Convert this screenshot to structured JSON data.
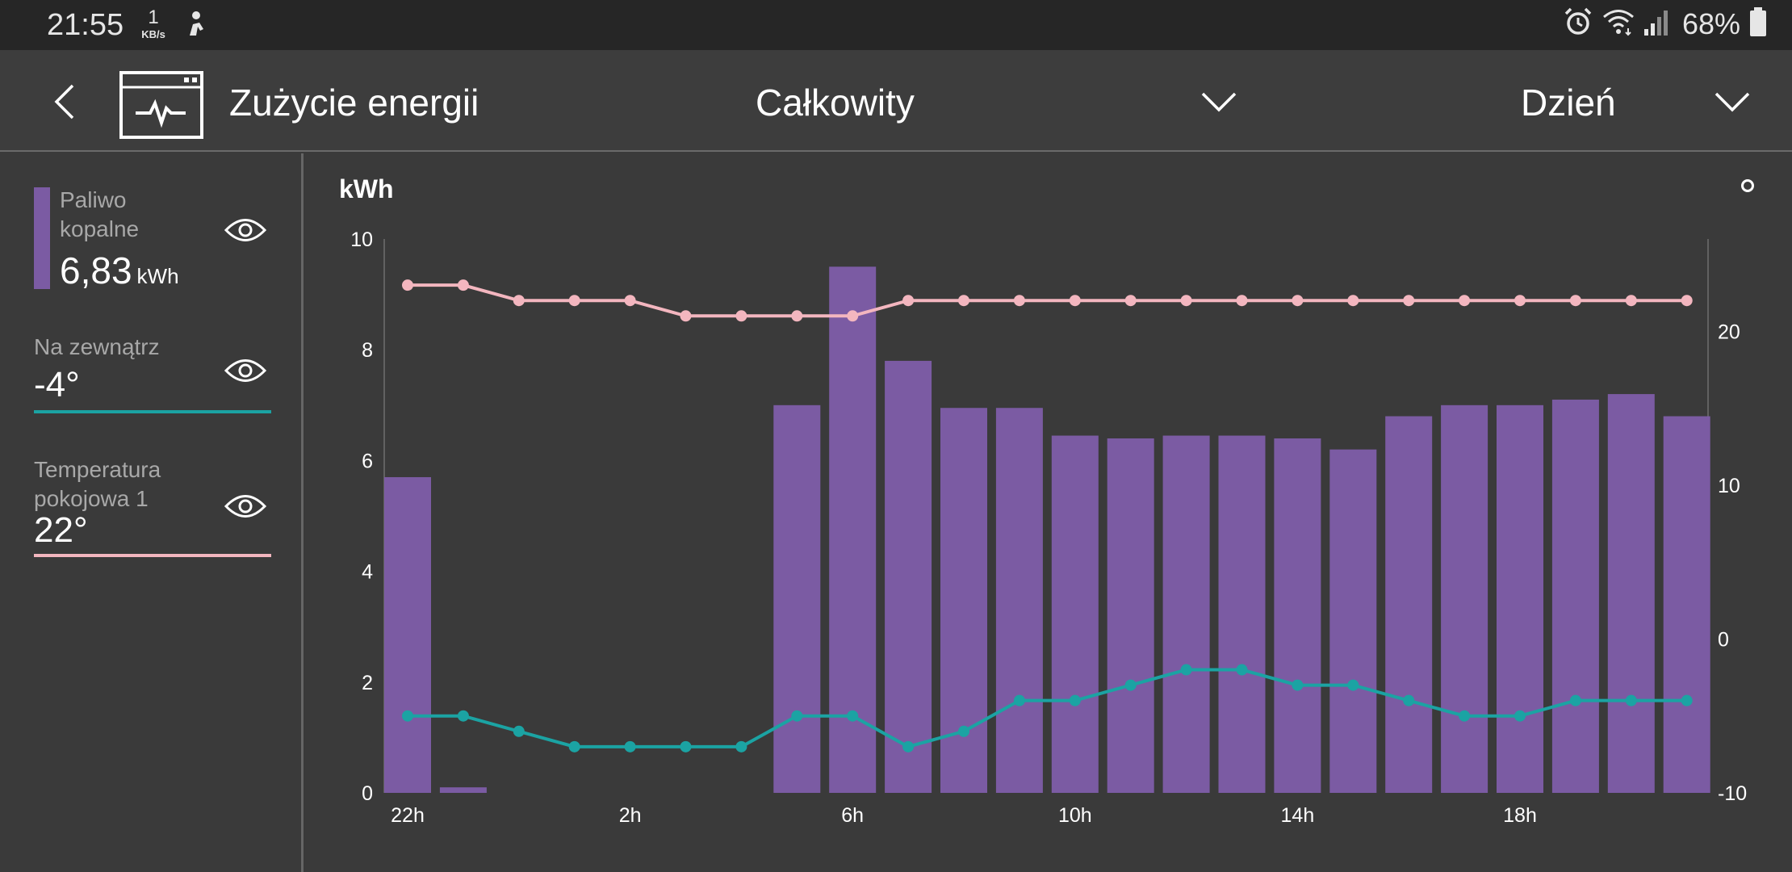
{
  "status_bar": {
    "time": "21:55",
    "rate_value": "1",
    "rate_unit": "KB/s",
    "battery_percent": "68%"
  },
  "app_bar": {
    "title": "Zużycie energii",
    "range_selected": "Całkowity",
    "period_selected": "Dzień",
    "icon": "monitor-pulse-icon"
  },
  "legend": {
    "fuel": {
      "label": "Paliwo kopalne",
      "value": "6,83",
      "unit": "kWh",
      "color": "#7b5ba3"
    },
    "outside": {
      "label": "Na zewnątrz",
      "value": "-4°",
      "color": "#1ba3a3"
    },
    "room": {
      "label": "Temperatura pokojowa 1",
      "value": "22°",
      "color": "#f3b6bf"
    }
  },
  "chart_data": {
    "type": "bar",
    "ylabel": "kWh",
    "ylim": [
      0,
      10
    ],
    "y_ticks": [
      0,
      2,
      4,
      6,
      8,
      10
    ],
    "y2lim": [
      -10,
      26
    ],
    "y2_ticks": [
      -10,
      0,
      10,
      20
    ],
    "x_tick_labels": [
      "22h",
      "2h",
      "6h",
      "10h",
      "14h",
      "18h"
    ],
    "x_tick_indices": [
      0,
      4,
      8,
      12,
      16,
      20
    ],
    "grid": false,
    "series": [
      {
        "name": "Paliwo kopalne",
        "type": "bar",
        "axis": "left",
        "color": "#7b5ba3",
        "values": [
          5.7,
          0.1,
          0,
          0,
          0,
          0,
          0,
          7.0,
          9.5,
          7.8,
          6.95,
          6.95,
          6.45,
          6.4,
          6.45,
          6.45,
          6.4,
          6.2,
          6.8,
          7.0,
          7.0,
          7.1,
          7.2,
          6.8
        ]
      },
      {
        "name": "Na zewnątrz",
        "type": "line",
        "axis": "right",
        "color": "#1ba3a3",
        "values": [
          -5,
          -5,
          -6,
          -7,
          -7,
          -7,
          -7,
          -5,
          -5,
          -7,
          -6,
          -4,
          -4,
          -3,
          -2,
          -2,
          -3,
          -3,
          -4,
          -5,
          -5,
          -4,
          -4,
          -4
        ]
      },
      {
        "name": "Temperatura pokojowa 1",
        "type": "line",
        "axis": "right",
        "color": "#f3b6bf",
        "values": [
          23,
          23,
          22,
          22,
          22,
          21,
          21,
          21,
          21,
          22,
          22,
          22,
          22,
          22,
          22,
          22,
          22,
          22,
          22,
          22,
          22,
          22,
          22,
          22
        ]
      }
    ]
  }
}
